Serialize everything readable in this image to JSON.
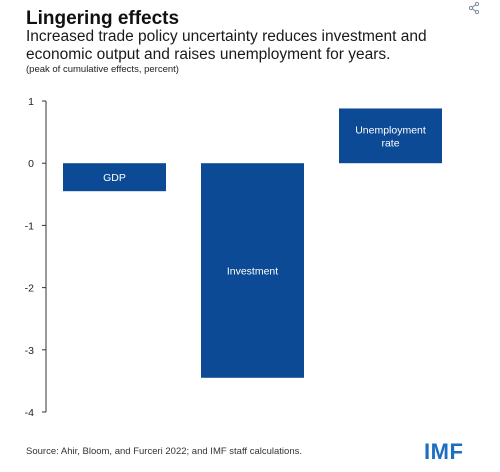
{
  "header": {
    "title": "Lingering effects",
    "subtitle": "Increased trade policy uncertainty reduces investment and economic output and raises unemployment for years.",
    "unit_note": "(peak of cumulative effects, percent)"
  },
  "footer": {
    "source": "Source: Ahir, Bloom, and Furceri 2022; and IMF staff calculations.",
    "logo_text": "IMF"
  },
  "icons": {
    "share": "share-icon"
  },
  "colors": {
    "bar": "#0c4a96",
    "bar_label": "#ffffff",
    "axis": "#333333",
    "logo": "#1b6ec2"
  },
  "chart_data": {
    "type": "bar",
    "categories": [
      "GDP",
      "Investment",
      "Unemployment rate"
    ],
    "category_label_lines": [
      [
        "GDP"
      ],
      [
        "Investment"
      ],
      [
        "Unemployment",
        "rate"
      ]
    ],
    "values": [
      -0.45,
      -3.45,
      0.88
    ],
    "ylim": [
      -4,
      1
    ],
    "yticks": [
      1,
      0,
      -1,
      -2,
      -3,
      -4
    ],
    "ytick_labels": [
      "1",
      "0",
      "-1",
      "-2",
      "-3",
      "-4"
    ],
    "xlabel": "",
    "ylabel": "",
    "grid": false,
    "legend": "none"
  }
}
